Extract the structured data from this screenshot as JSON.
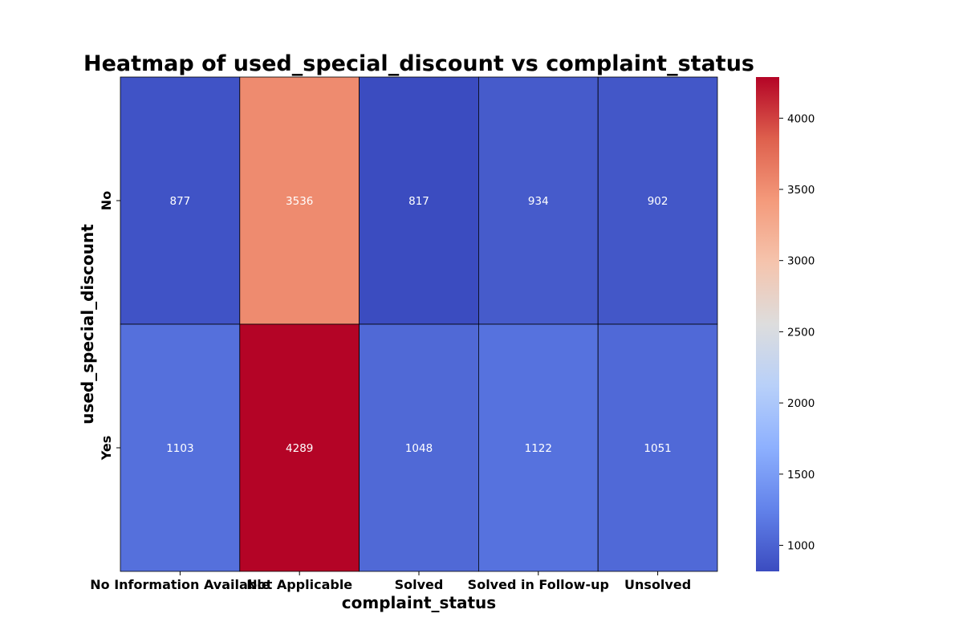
{
  "chart_data": {
    "type": "heatmap",
    "title": "Heatmap of used_special_discount vs complaint_status",
    "xlabel": "complaint_status",
    "ylabel": "used_special_discount",
    "x_categories": [
      "No Information Available",
      "Not Applicable",
      "Solved",
      "Solved in Follow-up",
      "Unsolved"
    ],
    "y_categories": [
      "No",
      "Yes"
    ],
    "values": [
      [
        877,
        3536,
        817,
        934,
        902
      ],
      [
        1103,
        4289,
        1048,
        1122,
        1051
      ]
    ],
    "colormap": "coolwarm",
    "vmin": 817,
    "vmax": 4289,
    "colorbar_ticks": [
      1000,
      1500,
      2000,
      2500,
      3000,
      3500,
      4000
    ],
    "cell_border_color": "#000000"
  }
}
